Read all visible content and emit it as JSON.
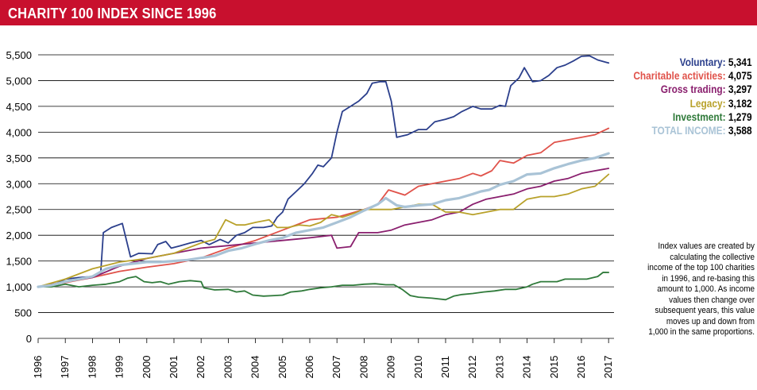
{
  "title": "CHARITY 100 INDEX SINCE 1996",
  "colors": {
    "title_bar": "#c8102e",
    "voluntary": "#2b3f8c",
    "charitable": "#e0524a",
    "gross_trading": "#8a1f6e",
    "legacy": "#b8a12a",
    "investment": "#2f7a3a",
    "total": "#a9c3d6"
  },
  "legend": [
    {
      "label": "Voluntary:",
      "value": "5,341",
      "color": "#2b3f8c"
    },
    {
      "label": "Charitable activities:",
      "value": "4,075",
      "color": "#e0524a"
    },
    {
      "label": "Gross trading:",
      "value": "3,297",
      "color": "#8a1f6e"
    },
    {
      "label": "Legacy:",
      "value": "3,182",
      "color": "#b8a12a"
    },
    {
      "label": "Investment:",
      "value": "1,279",
      "color": "#2f7a3a"
    },
    {
      "label": "TOTAL INCOME:",
      "value": "3,588",
      "color": "#a9c3d6"
    }
  ],
  "note": "Index values are created by calculating the collective income of the top 100 charities in 1996, and re-basing this amount to 1,000. As income values then change over subsequent years, this value moves up and down from 1,000 in the same proportions.",
  "chart_data": {
    "type": "line",
    "title": "CHARITY 100 INDEX SINCE 1996",
    "xlabel": "",
    "ylabel": "",
    "x_ticks": [
      "1996",
      "1997",
      "1998",
      "1999",
      "2000",
      "2001",
      "2002",
      "2003",
      "2004",
      "2005",
      "2006",
      "2007",
      "2008",
      "2009",
      "2010",
      "2011",
      "2012",
      "2013",
      "2014",
      "2015",
      "2016",
      "2017"
    ],
    "y_ticks": [
      "0",
      "500",
      "1,000",
      "1,500",
      "2,000",
      "2,500",
      "3,000",
      "3,500",
      "4,000",
      "4,500",
      "5,000",
      "5,500"
    ],
    "xlim": [
      1996,
      2017.2
    ],
    "ylim": [
      0,
      5500
    ],
    "grid": "horizontal",
    "legend_position": "right",
    "series": [
      {
        "name": "Voluntary",
        "color": "#2b3f8c",
        "width": 1.8,
        "points": [
          [
            1996,
            1000
          ],
          [
            1996.5,
            1020
          ],
          [
            1997,
            1150
          ],
          [
            1997.5,
            1180
          ],
          [
            1998,
            1200
          ],
          [
            1998.3,
            1250
          ],
          [
            1998.4,
            2050
          ],
          [
            1998.7,
            2150
          ],
          [
            1999.1,
            2230
          ],
          [
            1999.4,
            1580
          ],
          [
            1999.7,
            1650
          ],
          [
            2000.2,
            1640
          ],
          [
            2000.4,
            1820
          ],
          [
            2000.7,
            1880
          ],
          [
            2000.9,
            1750
          ],
          [
            2001.2,
            1790
          ],
          [
            2001.6,
            1850
          ],
          [
            2002,
            1900
          ],
          [
            2002.3,
            1820
          ],
          [
            2002.7,
            1920
          ],
          [
            2003,
            1850
          ],
          [
            2003.3,
            2000
          ],
          [
            2003.6,
            2050
          ],
          [
            2003.9,
            2150
          ],
          [
            2004.3,
            2150
          ],
          [
            2004.6,
            2180
          ],
          [
            2004.8,
            2350
          ],
          [
            2005,
            2450
          ],
          [
            2005.2,
            2700
          ],
          [
            2005.5,
            2850
          ],
          [
            2005.8,
            3000
          ],
          [
            2006.1,
            3200
          ],
          [
            2006.3,
            3360
          ],
          [
            2006.5,
            3330
          ],
          [
            2006.8,
            3500
          ],
          [
            2007,
            4000
          ],
          [
            2007.2,
            4400
          ],
          [
            2007.5,
            4500
          ],
          [
            2007.8,
            4600
          ],
          [
            2008.1,
            4750
          ],
          [
            2008.3,
            4950
          ],
          [
            2008.6,
            4980
          ],
          [
            2008.8,
            4980
          ],
          [
            2009,
            4600
          ],
          [
            2009.2,
            3900
          ],
          [
            2009.6,
            3950
          ],
          [
            2010,
            4050
          ],
          [
            2010.3,
            4050
          ],
          [
            2010.6,
            4200
          ],
          [
            2011,
            4250
          ],
          [
            2011.3,
            4300
          ],
          [
            2011.6,
            4400
          ],
          [
            2012,
            4500
          ],
          [
            2012.3,
            4450
          ],
          [
            2012.7,
            4450
          ],
          [
            2013,
            4520
          ],
          [
            2013.2,
            4500
          ],
          [
            2013.4,
            4900
          ],
          [
            2013.7,
            5050
          ],
          [
            2013.9,
            5250
          ],
          [
            2014.2,
            4980
          ],
          [
            2014.5,
            5000
          ],
          [
            2014.8,
            5100
          ],
          [
            2015.1,
            5250
          ],
          [
            2015.4,
            5300
          ],
          [
            2015.7,
            5380
          ],
          [
            2016,
            5470
          ],
          [
            2016.3,
            5480
          ],
          [
            2016.6,
            5400
          ],
          [
            2017,
            5341
          ]
        ]
      },
      {
        "name": "Charitable activities",
        "color": "#e0524a",
        "width": 1.8,
        "points": [
          [
            1996,
            1000
          ],
          [
            1997,
            1080
          ],
          [
            1998,
            1180
          ],
          [
            1999,
            1300
          ],
          [
            2000,
            1380
          ],
          [
            2001,
            1450
          ],
          [
            2002,
            1560
          ],
          [
            2003,
            1750
          ],
          [
            2004,
            1900
          ],
          [
            2005,
            2100
          ],
          [
            2006,
            2300
          ],
          [
            2007,
            2350
          ],
          [
            2008,
            2500
          ],
          [
            2008.5,
            2600
          ],
          [
            2008.9,
            2880
          ],
          [
            2009.5,
            2780
          ],
          [
            2010,
            2950
          ],
          [
            2010.5,
            3000
          ],
          [
            2011,
            3050
          ],
          [
            2011.5,
            3100
          ],
          [
            2012,
            3200
          ],
          [
            2012.3,
            3150
          ],
          [
            2012.7,
            3250
          ],
          [
            2013,
            3450
          ],
          [
            2013.5,
            3400
          ],
          [
            2014,
            3550
          ],
          [
            2014.5,
            3600
          ],
          [
            2015,
            3800
          ],
          [
            2015.5,
            3850
          ],
          [
            2016,
            3900
          ],
          [
            2016.5,
            3950
          ],
          [
            2017,
            4075
          ]
        ]
      },
      {
        "name": "Gross trading",
        "color": "#8a1f6e",
        "width": 1.8,
        "points": [
          [
            1996,
            1000
          ],
          [
            1997,
            1100
          ],
          [
            1998,
            1180
          ],
          [
            1999,
            1400
          ],
          [
            2000,
            1550
          ],
          [
            2001,
            1650
          ],
          [
            2002,
            1750
          ],
          [
            2003,
            1800
          ],
          [
            2004,
            1850
          ],
          [
            2005,
            1900
          ],
          [
            2006,
            1950
          ],
          [
            2006.8,
            2000
          ],
          [
            2007,
            1750
          ],
          [
            2007.5,
            1780
          ],
          [
            2007.8,
            2050
          ],
          [
            2008.5,
            2050
          ],
          [
            2009,
            2100
          ],
          [
            2009.5,
            2200
          ],
          [
            2010,
            2250
          ],
          [
            2010.5,
            2300
          ],
          [
            2011,
            2400
          ],
          [
            2011.5,
            2450
          ],
          [
            2012,
            2600
          ],
          [
            2012.5,
            2700
          ],
          [
            2013,
            2750
          ],
          [
            2013.5,
            2800
          ],
          [
            2014,
            2900
          ],
          [
            2014.5,
            2950
          ],
          [
            2015,
            3050
          ],
          [
            2015.5,
            3100
          ],
          [
            2016,
            3200
          ],
          [
            2016.5,
            3250
          ],
          [
            2017,
            3297
          ]
        ]
      },
      {
        "name": "Legacy",
        "color": "#b8a12a",
        "width": 1.8,
        "points": [
          [
            1996,
            1000
          ],
          [
            1997,
            1150
          ],
          [
            1998,
            1350
          ],
          [
            1999,
            1480
          ],
          [
            2000,
            1550
          ],
          [
            2001,
            1650
          ],
          [
            2002,
            1850
          ],
          [
            2002.5,
            1920
          ],
          [
            2002.9,
            2300
          ],
          [
            2003.3,
            2200
          ],
          [
            2003.6,
            2200
          ],
          [
            2004,
            2250
          ],
          [
            2004.5,
            2300
          ],
          [
            2004.8,
            2150
          ],
          [
            2005.2,
            2150
          ],
          [
            2005.6,
            2200
          ],
          [
            2006,
            2180
          ],
          [
            2006.4,
            2250
          ],
          [
            2006.8,
            2400
          ],
          [
            2007.2,
            2350
          ],
          [
            2007.5,
            2400
          ],
          [
            2008,
            2500
          ],
          [
            2008.5,
            2500
          ],
          [
            2009,
            2500
          ],
          [
            2009.5,
            2550
          ],
          [
            2010,
            2600
          ],
          [
            2010.5,
            2600
          ],
          [
            2011,
            2450
          ],
          [
            2011.5,
            2450
          ],
          [
            2012,
            2400
          ],
          [
            2012.5,
            2450
          ],
          [
            2013,
            2500
          ],
          [
            2013.5,
            2500
          ],
          [
            2014,
            2700
          ],
          [
            2014.5,
            2750
          ],
          [
            2015,
            2750
          ],
          [
            2015.5,
            2800
          ],
          [
            2016,
            2900
          ],
          [
            2016.5,
            2950
          ],
          [
            2017,
            3182
          ]
        ]
      },
      {
        "name": "Investment",
        "color": "#2f7a3a",
        "width": 1.8,
        "points": [
          [
            1996,
            1000
          ],
          [
            1996.5,
            1000
          ],
          [
            1997,
            1050
          ],
          [
            1997.5,
            1000
          ],
          [
            1998,
            1030
          ],
          [
            1998.5,
            1050
          ],
          [
            1999,
            1100
          ],
          [
            1999.3,
            1170
          ],
          [
            1999.6,
            1200
          ],
          [
            1999.9,
            1100
          ],
          [
            2000.2,
            1080
          ],
          [
            2000.5,
            1100
          ],
          [
            2000.8,
            1050
          ],
          [
            2001.2,
            1100
          ],
          [
            2001.6,
            1120
          ],
          [
            2002,
            1100
          ],
          [
            2002.1,
            980
          ],
          [
            2002.5,
            940
          ],
          [
            2003,
            950
          ],
          [
            2003.3,
            900
          ],
          [
            2003.6,
            920
          ],
          [
            2003.9,
            840
          ],
          [
            2004.3,
            820
          ],
          [
            2004.7,
            830
          ],
          [
            2005,
            840
          ],
          [
            2005.3,
            900
          ],
          [
            2005.7,
            920
          ],
          [
            2006,
            950
          ],
          [
            2006.4,
            980
          ],
          [
            2006.8,
            1000
          ],
          [
            2007.2,
            1030
          ],
          [
            2007.6,
            1030
          ],
          [
            2008,
            1050
          ],
          [
            2008.4,
            1060
          ],
          [
            2008.8,
            1040
          ],
          [
            2009.1,
            1040
          ],
          [
            2009.4,
            950
          ],
          [
            2009.7,
            830
          ],
          [
            2010,
            800
          ],
          [
            2010.5,
            780
          ],
          [
            2011,
            750
          ],
          [
            2011.3,
            820
          ],
          [
            2011.6,
            850
          ],
          [
            2012,
            870
          ],
          [
            2012.4,
            900
          ],
          [
            2012.8,
            920
          ],
          [
            2013.2,
            950
          ],
          [
            2013.6,
            950
          ],
          [
            2014,
            1000
          ],
          [
            2014.2,
            1050
          ],
          [
            2014.5,
            1100
          ],
          [
            2014.8,
            1100
          ],
          [
            2015.1,
            1100
          ],
          [
            2015.4,
            1150
          ],
          [
            2015.8,
            1150
          ],
          [
            2016.2,
            1150
          ],
          [
            2016.6,
            1200
          ],
          [
            2016.8,
            1280
          ],
          [
            2017,
            1279
          ]
        ]
      },
      {
        "name": "TOTAL INCOME",
        "color": "#a9c3d6",
        "width": 3.2,
        "points": [
          [
            1996,
            1000
          ],
          [
            1996.5,
            1030
          ],
          [
            1997,
            1100
          ],
          [
            1997.5,
            1150
          ],
          [
            1998,
            1200
          ],
          [
            1998.5,
            1350
          ],
          [
            1999,
            1420
          ],
          [
            1999.5,
            1450
          ],
          [
            2000,
            1480
          ],
          [
            2000.5,
            1480
          ],
          [
            2001,
            1500
          ],
          [
            2001.5,
            1520
          ],
          [
            2002,
            1560
          ],
          [
            2002.5,
            1600
          ],
          [
            2003,
            1700
          ],
          [
            2003.5,
            1750
          ],
          [
            2004,
            1830
          ],
          [
            2004.5,
            1900
          ],
          [
            2005,
            1950
          ],
          [
            2005.5,
            2050
          ],
          [
            2006,
            2100
          ],
          [
            2006.5,
            2150
          ],
          [
            2007,
            2250
          ],
          [
            2007.5,
            2350
          ],
          [
            2008,
            2480
          ],
          [
            2008.5,
            2600
          ],
          [
            2008.8,
            2720
          ],
          [
            2009.2,
            2580
          ],
          [
            2009.5,
            2550
          ],
          [
            2010,
            2580
          ],
          [
            2010.5,
            2600
          ],
          [
            2011,
            2680
          ],
          [
            2011.5,
            2720
          ],
          [
            2012,
            2800
          ],
          [
            2012.3,
            2850
          ],
          [
            2012.6,
            2880
          ],
          [
            2013,
            2980
          ],
          [
            2013.5,
            3050
          ],
          [
            2014,
            3180
          ],
          [
            2014.5,
            3200
          ],
          [
            2015,
            3300
          ],
          [
            2015.5,
            3380
          ],
          [
            2016,
            3450
          ],
          [
            2016.5,
            3500
          ],
          [
            2017,
            3588
          ]
        ]
      }
    ]
  }
}
